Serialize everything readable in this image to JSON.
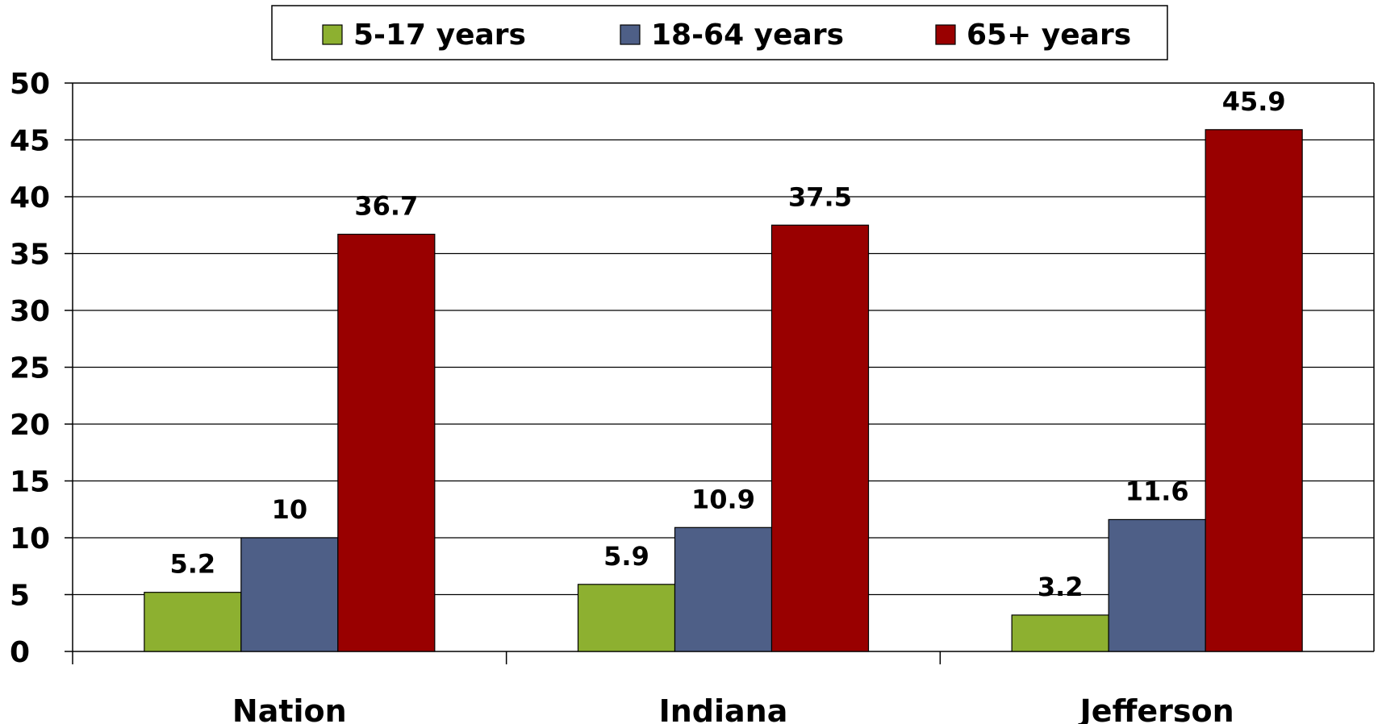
{
  "chart_data": {
    "type": "bar",
    "title": "",
    "xlabel": "",
    "ylabel": "",
    "categories": [
      "Nation",
      "Indiana",
      "Jefferson"
    ],
    "series": [
      {
        "name": "5-17 years",
        "values": [
          5.2,
          5.9,
          3.2
        ],
        "color": "#8db030"
      },
      {
        "name": "18-64 years",
        "values": [
          10,
          10.9,
          11.6
        ],
        "color": "#4e5f87"
      },
      {
        "name": "65+ years",
        "values": [
          36.7,
          37.5,
          45.9
        ],
        "color": "#990000"
      }
    ],
    "ylim": [
      0,
      50
    ],
    "yticks": [
      "0",
      "5",
      "10",
      "15",
      "20",
      "25",
      "30",
      "35",
      "40",
      "45",
      "50"
    ],
    "data_labels": [
      [
        "5.2",
        "5.9",
        "3.2"
      ],
      [
        "10",
        "10.9",
        "11.6"
      ],
      [
        "36.7",
        "37.5",
        "45.9"
      ]
    ],
    "grid": true,
    "legend_position": "top"
  }
}
